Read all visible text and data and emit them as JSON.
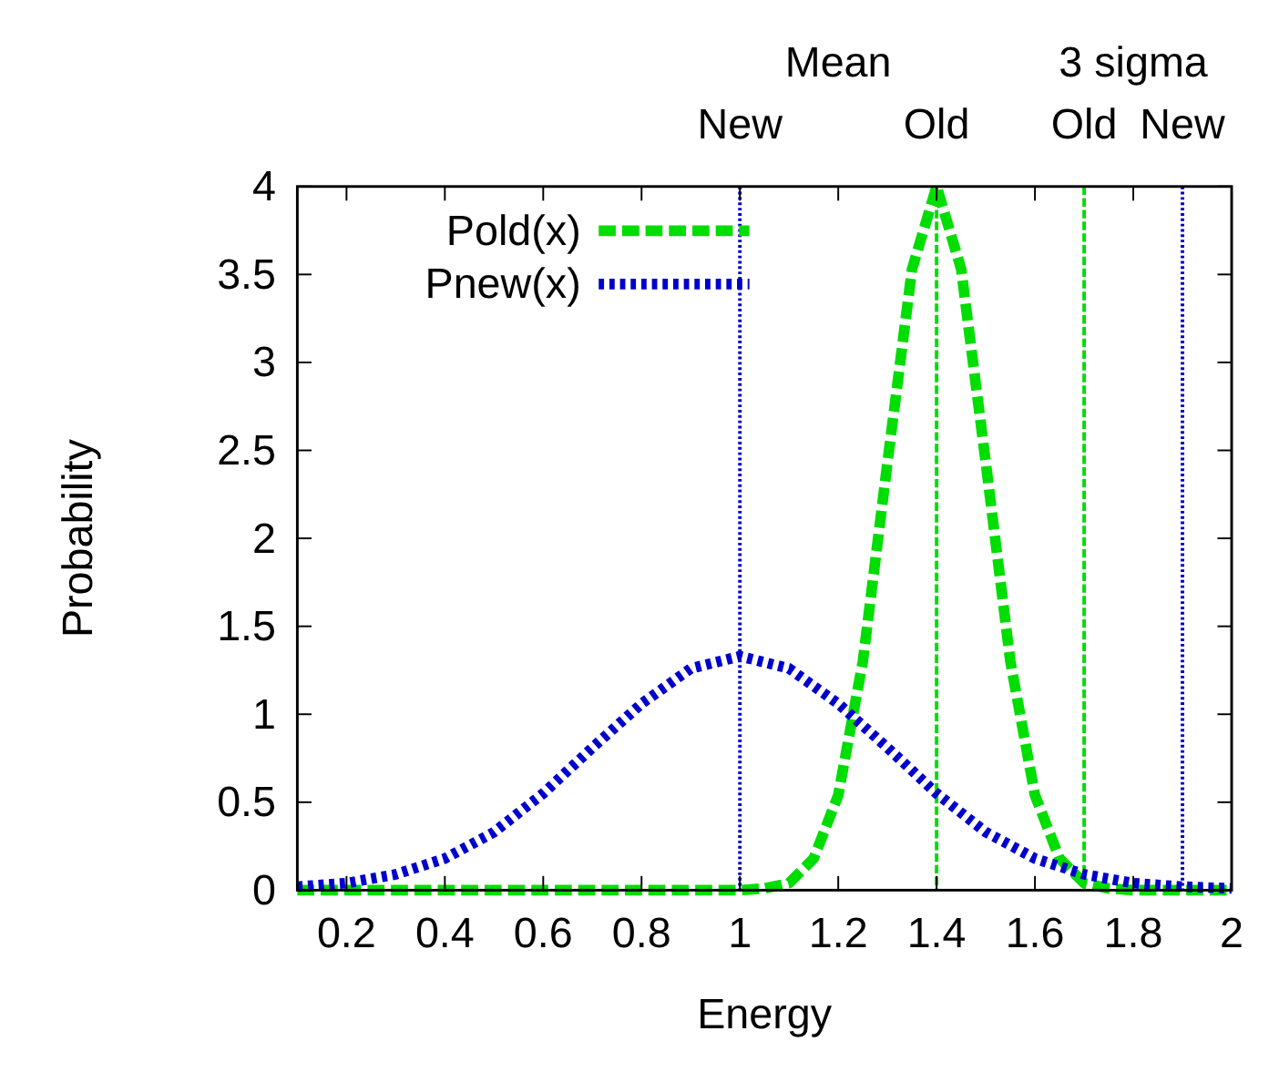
{
  "chart_data": {
    "type": "line",
    "xlabel": "Energy",
    "ylabel": "Probability",
    "xlim": [
      0.1,
      2
    ],
    "ylim": [
      0,
      4
    ],
    "xticks": [
      0.2,
      0.4,
      0.6,
      0.8,
      1,
      1.2,
      1.4,
      1.6,
      1.8,
      2
    ],
    "yticks": [
      0,
      0.5,
      1,
      1.5,
      2,
      2.5,
      3,
      3.5,
      4
    ],
    "legend": "top left",
    "grid": false,
    "series": [
      {
        "name": "Pold(x)",
        "color": "#00dd00",
        "line_style": "dashed",
        "x": [
          0.1,
          0.9,
          1.0,
          1.05,
          1.1,
          1.15,
          1.2,
          1.25,
          1.3,
          1.35,
          1.4,
          1.45,
          1.5,
          1.55,
          1.6,
          1.65,
          1.7,
          1.75,
          1.8,
          1.9,
          2.0
        ],
        "values": [
          0,
          0,
          0,
          0.01,
          0.04,
          0.18,
          0.54,
          1.3,
          2.43,
          3.53,
          4,
          3.53,
          2.43,
          1.3,
          0.54,
          0.18,
          0.04,
          0.01,
          0,
          0,
          0
        ]
      },
      {
        "name": "Pnew(x)",
        "color": "#0000cc",
        "line_style": "dotted",
        "x": [
          0.1,
          0.2,
          0.3,
          0.4,
          0.5,
          0.6,
          0.7,
          0.8,
          0.9,
          1.0,
          1.1,
          1.2,
          1.3,
          1.4,
          1.5,
          1.6,
          1.7,
          1.8,
          1.9,
          2.0
        ],
        "values": [
          0.02,
          0.04,
          0.09,
          0.18,
          0.33,
          0.55,
          0.81,
          1.06,
          1.26,
          1.33,
          1.26,
          1.06,
          0.81,
          0.55,
          0.33,
          0.18,
          0.09,
          0.04,
          0.02,
          0.01
        ]
      }
    ],
    "ref_lines": [
      {
        "axis": "x",
        "value": 1,
        "label": "New",
        "color": "#0000cc",
        "line_style": "dotted"
      },
      {
        "axis": "x",
        "value": 1.4,
        "label": "Old",
        "color": "#00dd00",
        "line_style": "dashed"
      },
      {
        "axis": "x",
        "value": 1.7,
        "label": "Old",
        "color": "#00dd00",
        "line_style": "dashed"
      },
      {
        "axis": "x",
        "value": 1.9,
        "label": "New",
        "color": "#0000cc",
        "line_style": "dotted"
      }
    ],
    "annotations": [
      "Mean",
      "3 sigma"
    ]
  }
}
